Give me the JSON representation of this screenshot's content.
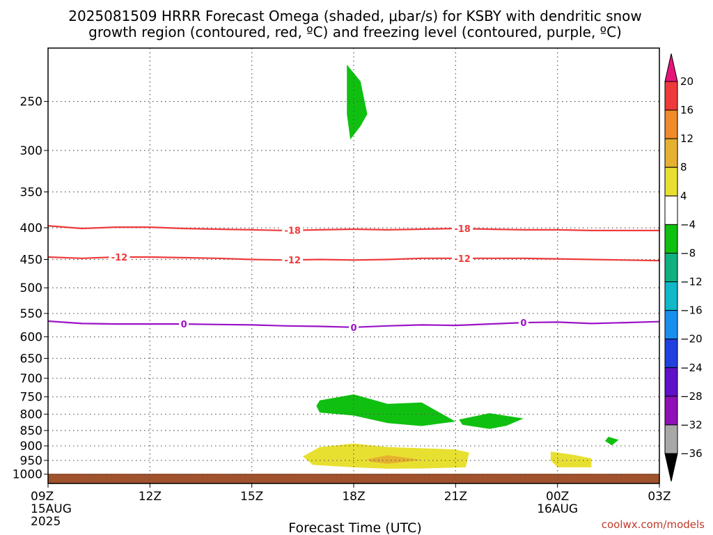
{
  "chart_data": {
    "type": "heatmap",
    "title_line1": "2025081509 HRRR Forecast Omega (shaded, μbar/s) for KSBY with dendritic snow",
    "title_line2": "growth region (contoured, red, ºC) and freezing level (contoured, purple, ºC)",
    "xlabel": "Forecast Time (UTC)",
    "credit": "coolwx.com/models",
    "x_ticks": [
      {
        "hour": 0,
        "label": "09Z",
        "sub1": "15AUG",
        "sub2": "2025"
      },
      {
        "hour": 3,
        "label": "12Z",
        "sub1": "",
        "sub2": ""
      },
      {
        "hour": 6,
        "label": "15Z",
        "sub1": "",
        "sub2": ""
      },
      {
        "hour": 9,
        "label": "18Z",
        "sub1": "",
        "sub2": ""
      },
      {
        "hour": 12,
        "label": "21Z",
        "sub1": "",
        "sub2": ""
      },
      {
        "hour": 15,
        "label": "00Z",
        "sub1": "16AUG",
        "sub2": ""
      },
      {
        "hour": 18,
        "label": "03Z",
        "sub1": "",
        "sub2": ""
      }
    ],
    "xlim_hours": [
      0,
      18
    ],
    "y_axis": {
      "quantity": "pressure (hPa)",
      "scale": "log",
      "inverted": true,
      "ylim": [
        205,
        1035
      ]
    },
    "y_ticks": [
      "250",
      "300",
      "350",
      "400",
      "450",
      "500",
      "550",
      "600",
      "650",
      "700",
      "750",
      "800",
      "850",
      "900",
      "950",
      "1000"
    ],
    "grid": "dotted",
    "colorbar": {
      "placement": "right",
      "ticks": [
        "20",
        "16",
        "12",
        "8",
        "4",
        "−4",
        "−8",
        "−12",
        "−16",
        "−20",
        "−24",
        "−28",
        "−32",
        "−36"
      ],
      "colors": [
        "#e8137a",
        "#ee3a3a",
        "#f08a2a",
        "#e6b030",
        "#e8e030",
        "#ffffff",
        "#10c010",
        "#10b080",
        "#10b8c8",
        "#1a90ee",
        "#2040e0",
        "#6010c8",
        "#9010b8",
        "#a8a8a8",
        "#000000"
      ]
    },
    "terrain_color": "#a0522d",
    "contours": [
      {
        "level": "-18",
        "color": "#ee3b3b",
        "points": [
          [
            0,
            397
          ],
          [
            1,
            401
          ],
          [
            2,
            399
          ],
          [
            3,
            399
          ],
          [
            4,
            401
          ],
          [
            5,
            402
          ],
          [
            6,
            403
          ],
          [
            7,
            404
          ],
          [
            8,
            403
          ],
          [
            9,
            402
          ],
          [
            10,
            403
          ],
          [
            11,
            402
          ],
          [
            12,
            401
          ],
          [
            13,
            402
          ],
          [
            14,
            403
          ],
          [
            15,
            403
          ],
          [
            16,
            404
          ],
          [
            17,
            404
          ],
          [
            18,
            404
          ]
        ],
        "label_hours": [
          7.2,
          12.2
        ]
      },
      {
        "level": "-12",
        "color": "#ee3b3b",
        "points": [
          [
            0,
            446
          ],
          [
            1,
            448
          ],
          [
            2,
            446
          ],
          [
            3,
            446
          ],
          [
            4,
            447
          ],
          [
            5,
            448
          ],
          [
            6,
            450
          ],
          [
            7,
            451
          ],
          [
            8,
            450
          ],
          [
            9,
            451
          ],
          [
            10,
            450
          ],
          [
            11,
            448
          ],
          [
            12,
            448
          ],
          [
            13,
            448
          ],
          [
            14,
            448
          ],
          [
            15,
            449
          ],
          [
            16,
            450
          ],
          [
            17,
            451
          ],
          [
            18,
            452
          ]
        ],
        "label_hours": [
          2.1,
          7.2,
          12.2
        ]
      },
      {
        "level": "0",
        "color": "#9b12c8",
        "points": [
          [
            0,
            566
          ],
          [
            1,
            571
          ],
          [
            2,
            572
          ],
          [
            3,
            572
          ],
          [
            4,
            572
          ],
          [
            5,
            573
          ],
          [
            6,
            574
          ],
          [
            7,
            576
          ],
          [
            8,
            577
          ],
          [
            9,
            579
          ],
          [
            10,
            576
          ],
          [
            11,
            574
          ],
          [
            12,
            575
          ],
          [
            13,
            572
          ],
          [
            14,
            569
          ],
          [
            15,
            568
          ],
          [
            16,
            571
          ],
          [
            17,
            569
          ],
          [
            18,
            567
          ]
        ],
        "label_hours": [
          4.0,
          9.0,
          14.0
        ]
      }
    ],
    "omega_regions": [
      {
        "value_range": "-4 to -8",
        "color": "#10c010",
        "points": [
          [
            8.8,
            218
          ],
          [
            9.2,
            232
          ],
          [
            9.4,
            262
          ],
          [
            9.2,
            274
          ],
          [
            8.9,
            288
          ],
          [
            8.8,
            262
          ]
        ]
      },
      {
        "value_range": "-4 to -8",
        "color": "#10c010",
        "points": [
          [
            8.0,
            760
          ],
          [
            9.0,
            743
          ],
          [
            10.0,
            770
          ],
          [
            11.0,
            766
          ],
          [
            12.0,
            822
          ],
          [
            11.0,
            836
          ],
          [
            10.0,
            827
          ],
          [
            9.0,
            804
          ],
          [
            8.0,
            795
          ],
          [
            7.9,
            776
          ]
        ]
      },
      {
        "value_range": "-4 to -8",
        "color": "#10c010",
        "points": [
          [
            12.1,
            816
          ],
          [
            13.0,
            797
          ],
          [
            14.0,
            813
          ],
          [
            13.5,
            835
          ],
          [
            13.0,
            845
          ],
          [
            12.2,
            832
          ]
        ]
      },
      {
        "value_range": "-4 to -8",
        "color": "#10c010",
        "points": [
          [
            16.5,
            870
          ],
          [
            16.8,
            880
          ],
          [
            16.6,
            898
          ],
          [
            16.4,
            884
          ]
        ]
      },
      {
        "value_range": "4 to 8",
        "color": "#e8e030",
        "points": [
          [
            7.5,
            936
          ],
          [
            8.0,
            904
          ],
          [
            9.0,
            892
          ],
          [
            10.0,
            904
          ],
          [
            12.0,
            912
          ],
          [
            12.4,
            923
          ],
          [
            12.3,
            975
          ],
          [
            11.0,
            979
          ],
          [
            10.0,
            980
          ],
          [
            9.0,
            975
          ],
          [
            7.8,
            966
          ]
        ]
      },
      {
        "value_range": "4 to 8",
        "color": "#e8e030",
        "points": [
          [
            14.8,
            919
          ],
          [
            15.5,
            931
          ],
          [
            16.0,
            943
          ],
          [
            16.0,
            975
          ],
          [
            15.0,
            975
          ],
          [
            14.8,
            950
          ]
        ]
      },
      {
        "value_range": "8 to 12",
        "color": "#e6b030",
        "points": [
          [
            9.4,
            946
          ],
          [
            10.0,
            932
          ],
          [
            11.0,
            948
          ],
          [
            10.0,
            962
          ],
          [
            9.5,
            955
          ]
        ]
      }
    ]
  }
}
